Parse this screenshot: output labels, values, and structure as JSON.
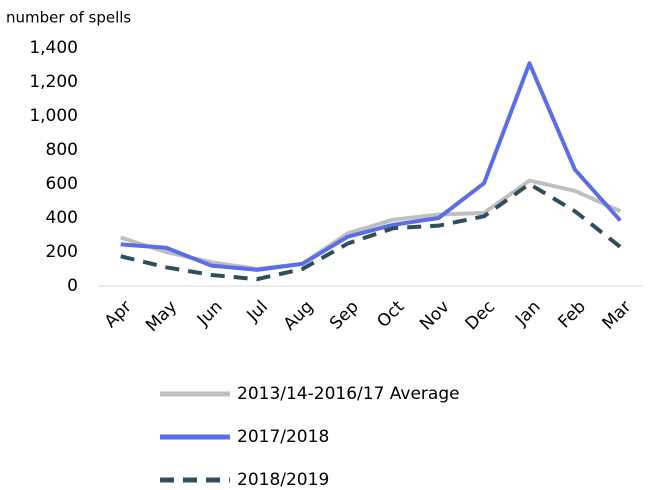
{
  "chart_data": {
    "type": "line",
    "y_label": "number of spells",
    "categories": [
      "Apr",
      "May",
      "Jun",
      "Jul",
      "Aug",
      "Sep",
      "Oct",
      "Nov",
      "Dec",
      "Jan",
      "Feb",
      "Mar"
    ],
    "series": [
      {
        "name": "2013/14-2016/17 Average",
        "color": "#bfbfbf",
        "style": "solid",
        "values": [
          285,
          200,
          140,
          100,
          130,
          310,
          390,
          420,
          430,
          620,
          560,
          440
        ]
      },
      {
        "name": "2017/2018",
        "color": "#5a6ee8",
        "style": "solid",
        "values": [
          245,
          225,
          120,
          95,
          130,
          290,
          360,
          400,
          605,
          1310,
          685,
          385
        ]
      },
      {
        "name": "2018/2019",
        "color": "#2f4f5f",
        "style": "dashed",
        "values": [
          175,
          110,
          65,
          40,
          100,
          250,
          340,
          355,
          410,
          600,
          440,
          230
        ]
      }
    ],
    "ylim": [
      0,
      1400
    ],
    "yticks": [
      0,
      200,
      400,
      600,
      800,
      {
        "value": 1000,
        "label": "1,000"
      },
      {
        "value": 1200,
        "label": "1,200"
      },
      {
        "value": 1400,
        "label": "1,400"
      }
    ],
    "grid": false,
    "legend": "bottom"
  }
}
